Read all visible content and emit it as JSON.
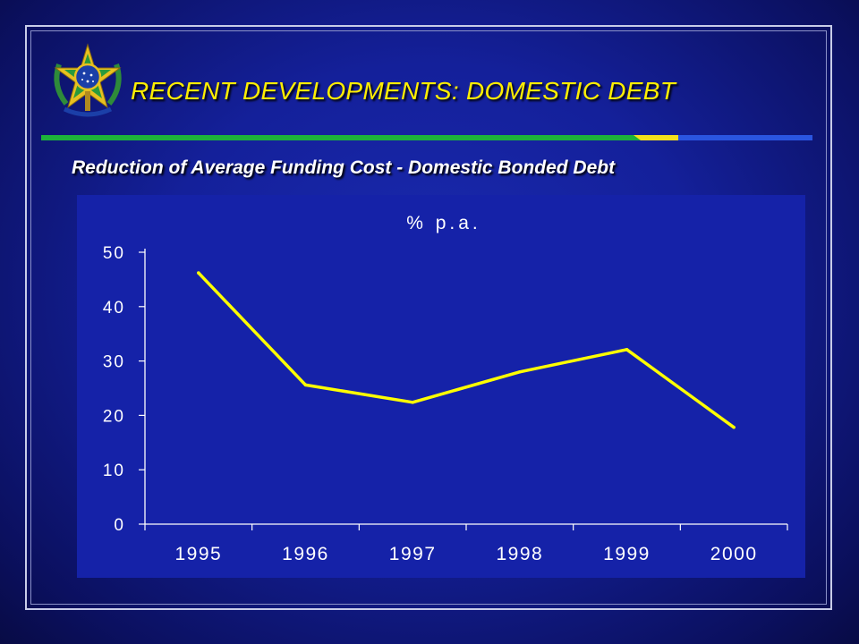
{
  "slide": {
    "title": "RECENT DEVELOPMENTS: DOMESTIC DEBT",
    "subtitle": "Reduction of Average Funding Cost - Domestic Bonded Debt"
  },
  "colors": {
    "title": "#ffee00",
    "line": "#ffff00",
    "rule_green": "#1db33a",
    "rule_yellow": "#f3e01c",
    "rule_blue": "#2a55e0"
  },
  "icons": {
    "emblem": "coat-of-arms-emblem"
  },
  "chart_data": {
    "type": "line",
    "title": "% p.a.",
    "xlabel": "",
    "ylabel": "",
    "categories": [
      "1995",
      "1996",
      "1997",
      "1998",
      "1999",
      "2000"
    ],
    "series": [
      {
        "values": [
          46.2,
          25.6,
          22.4,
          28.0,
          32.1,
          17.8
        ]
      }
    ],
    "yticks": [
      0,
      10,
      20,
      30,
      40,
      50
    ],
    "ylim": [
      0,
      50
    ],
    "grid": false,
    "legend": "none"
  }
}
